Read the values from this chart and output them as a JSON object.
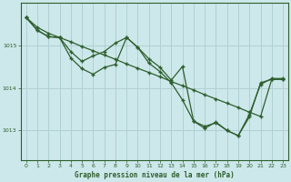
{
  "title": "Graphe pression niveau de la mer (hPa)",
  "background_color": "#cde8ea",
  "grid_color": "#b0d0d3",
  "line_color": "#2d5e2d",
  "xlim": [
    -0.5,
    23.5
  ],
  "ylim": [
    1012.3,
    1016.0
  ],
  "yticks": [
    1013,
    1014,
    1015
  ],
  "xticks": [
    0,
    1,
    2,
    3,
    4,
    5,
    6,
    7,
    8,
    9,
    10,
    11,
    12,
    13,
    14,
    15,
    16,
    17,
    18,
    19,
    20,
    21,
    22,
    23
  ],
  "series_straight": [
    1015.65,
    1015.42,
    1015.28,
    1015.18,
    1015.08,
    1014.97,
    1014.87,
    1014.77,
    1014.67,
    1014.56,
    1014.46,
    1014.36,
    1014.26,
    1014.15,
    1014.05,
    1013.95,
    1013.84,
    1013.74,
    1013.64,
    1013.54,
    1013.43,
    1013.33,
    1014.2,
    1014.2
  ],
  "series_a": [
    1015.65,
    1015.35,
    1015.2,
    1015.18,
    1014.85,
    1014.62,
    1014.75,
    1014.85,
    1015.05,
    1015.18,
    1014.95,
    1014.68,
    1014.48,
    1014.18,
    1014.5,
    1013.22,
    1013.1,
    1013.18,
    1013.0,
    1012.88,
    1013.38,
    1014.08,
    1014.22,
    1014.22
  ],
  "series_b": [
    1015.65,
    1015.35,
    1015.2,
    1015.18,
    1014.7,
    1014.45,
    1014.32,
    1014.48,
    1014.55,
    1015.18,
    1014.95,
    1014.58,
    1014.38,
    1014.12,
    1013.72,
    1013.22,
    1013.05,
    1013.2,
    1013.0,
    1012.88,
    1013.32,
    1014.12,
    1014.2,
    1014.2
  ]
}
